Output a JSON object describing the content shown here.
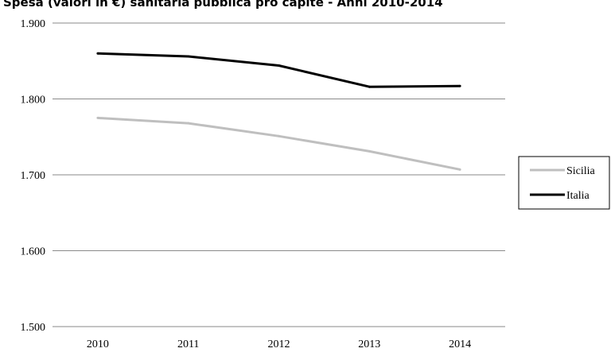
{
  "title": {
    "part1": "Spesa",
    "part2": " (valori in €) ",
    "part3": "sanitaria pubblica",
    "part4": " pro capite - Anni 2010-2014"
  },
  "chart_data": {
    "type": "line",
    "categories": [
      "2010",
      "2011",
      "2012",
      "2013",
      "2014"
    ],
    "y_ticks": [
      "1.500",
      "1.600",
      "1.700",
      "1.800",
      "1.900"
    ],
    "ylim": [
      1500,
      1900
    ],
    "grid": true,
    "legend_position": "right",
    "series": [
      {
        "name": "Sicilia",
        "values": [
          1775,
          1768,
          1751,
          1731,
          1707
        ],
        "color": "#bfbfbf"
      },
      {
        "name": "Italia",
        "values": [
          1860,
          1856,
          1844,
          1816,
          1817
        ],
        "color": "#000000"
      }
    ]
  }
}
